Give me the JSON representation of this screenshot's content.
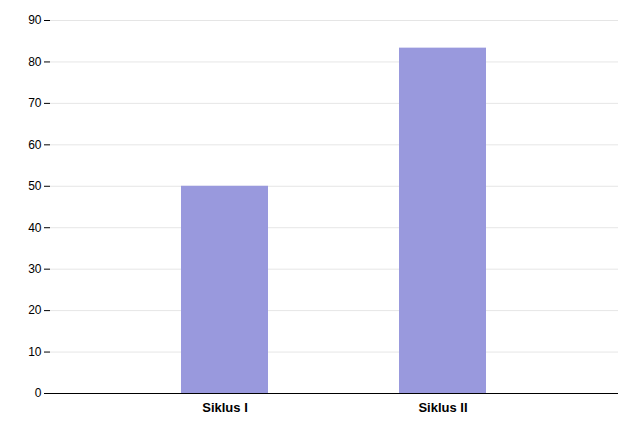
{
  "chart_data": {
    "type": "bar",
    "categories": [
      "Siklus I",
      "Siklus II"
    ],
    "values": [
      50,
      83.33
    ],
    "color": "#9999DD",
    "ylim": [
      0,
      90
    ],
    "yticks": [
      0,
      10,
      20,
      30,
      40,
      50,
      60,
      70,
      80,
      90
    ],
    "grid": true
  }
}
